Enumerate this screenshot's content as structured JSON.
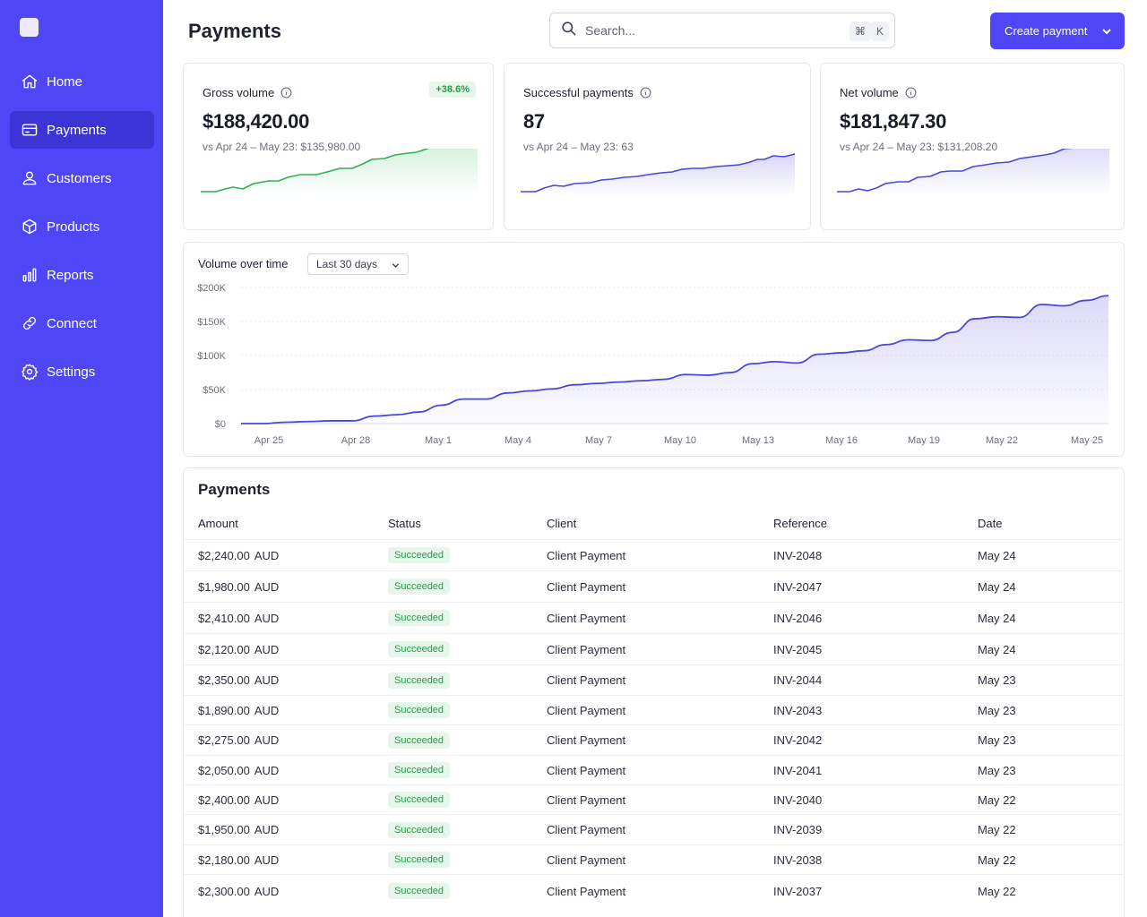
{
  "sidebar": {
    "items": [
      {
        "label": "Home",
        "icon": "home-icon",
        "active": false
      },
      {
        "label": "Payments",
        "icon": "credit-card-icon",
        "active": true
      },
      {
        "label": "Customers",
        "icon": "user-icon",
        "active": false
      },
      {
        "label": "Products",
        "icon": "box-icon",
        "active": false
      },
      {
        "label": "Reports",
        "icon": "bar-chart-icon",
        "active": false
      },
      {
        "label": "Connect",
        "icon": "link-icon",
        "active": false
      },
      {
        "label": "Settings",
        "icon": "gear-icon",
        "active": false
      }
    ]
  },
  "header": {
    "title": "Payments",
    "search_placeholder": "Search...",
    "shortcut_keys": [
      "⌘",
      "K"
    ],
    "create_label": "Create payment"
  },
  "metrics": [
    {
      "title": "Gross volume",
      "value": "$188,420.00",
      "compare": "vs Apr 24 – May 23: $135,980.00",
      "delta": "+38.6%",
      "color": "#2fb14f"
    },
    {
      "title": "Successful payments",
      "value": "87",
      "compare": "vs Apr 24 – May 23: 63",
      "delta": "",
      "color": "#4b46dd"
    },
    {
      "title": "Net volume",
      "value": "$181,847.30",
      "compare": "vs Apr 24 – May 23: $131,208.20",
      "delta": "",
      "color": "#4b46dd"
    }
  ],
  "volume_panel": {
    "label": "Volume over time",
    "range": "Last 30 days"
  },
  "chart_data": {
    "type": "area",
    "title": "",
    "xlabel": "",
    "ylabel": "",
    "x_ticks": [
      "Apr 25",
      "Apr 28",
      "May 1",
      "May 4",
      "May 7",
      "May 10",
      "May 13",
      "May 16",
      "May 19",
      "May 22",
      "May 25"
    ],
    "y_ticks": [
      "$0",
      "$50K",
      "$100K",
      "$150K",
      "$200K"
    ],
    "ylim": [
      0,
      200000
    ],
    "color": "#4b46dd",
    "grid": true,
    "series": [
      {
        "values": [
          0,
          0,
          2000,
          3000,
          4000,
          4000,
          11000,
          13000,
          17000,
          27000,
          36000,
          36000,
          45000,
          48000,
          51000,
          57000,
          59000,
          61000,
          63000,
          65000,
          72000,
          71000,
          75000,
          88000,
          91000,
          89000,
          102000,
          104000,
          107000,
          116000,
          123000,
          122000,
          134000,
          154000,
          157000,
          156000,
          175000,
          173000,
          181000,
          188000
        ]
      }
    ]
  },
  "table": {
    "title": "Payments",
    "columns": [
      "Amount",
      "Status",
      "Client",
      "Reference",
      "Date"
    ],
    "rows": [
      {
        "amount": "$2,240.00",
        "currency": "AUD",
        "status": "Succeeded",
        "client": "Client Payment",
        "reference": "INV-2048",
        "date": "May 24"
      },
      {
        "amount": "$1,980.00",
        "currency": "AUD",
        "status": "Succeeded",
        "client": "Client Payment",
        "reference": "INV-2047",
        "date": "May 24"
      },
      {
        "amount": "$2,410.00",
        "currency": "AUD",
        "status": "Succeeded",
        "client": "Client Payment",
        "reference": "INV-2046",
        "date": "May 24"
      },
      {
        "amount": "$2,120.00",
        "currency": "AUD",
        "status": "Succeeded",
        "client": "Client Payment",
        "reference": "INV-2045",
        "date": "May 24"
      },
      {
        "amount": "$2,350.00",
        "currency": "AUD",
        "status": "Succeeded",
        "client": "Client Payment",
        "reference": "INV-2044",
        "date": "May 23"
      },
      {
        "amount": "$1,890.00",
        "currency": "AUD",
        "status": "Succeeded",
        "client": "Client Payment",
        "reference": "INV-2043",
        "date": "May 23"
      },
      {
        "amount": "$2,275.00",
        "currency": "AUD",
        "status": "Succeeded",
        "client": "Client Payment",
        "reference": "INV-2042",
        "date": "May 23"
      },
      {
        "amount": "$2,050.00",
        "currency": "AUD",
        "status": "Succeeded",
        "client": "Client Payment",
        "reference": "INV-2041",
        "date": "May 23"
      },
      {
        "amount": "$2,400.00",
        "currency": "AUD",
        "status": "Succeeded",
        "client": "Client Payment",
        "reference": "INV-2040",
        "date": "May 22"
      },
      {
        "amount": "$1,950.00",
        "currency": "AUD",
        "status": "Succeeded",
        "client": "Client Payment",
        "reference": "INV-2039",
        "date": "May 22"
      },
      {
        "amount": "$2,180.00",
        "currency": "AUD",
        "status": "Succeeded",
        "client": "Client Payment",
        "reference": "INV-2038",
        "date": "May 22"
      },
      {
        "amount": "$2,300.00",
        "currency": "AUD",
        "status": "Succeeded",
        "client": "Client Payment",
        "reference": "INV-2037",
        "date": "May 22"
      }
    ]
  }
}
